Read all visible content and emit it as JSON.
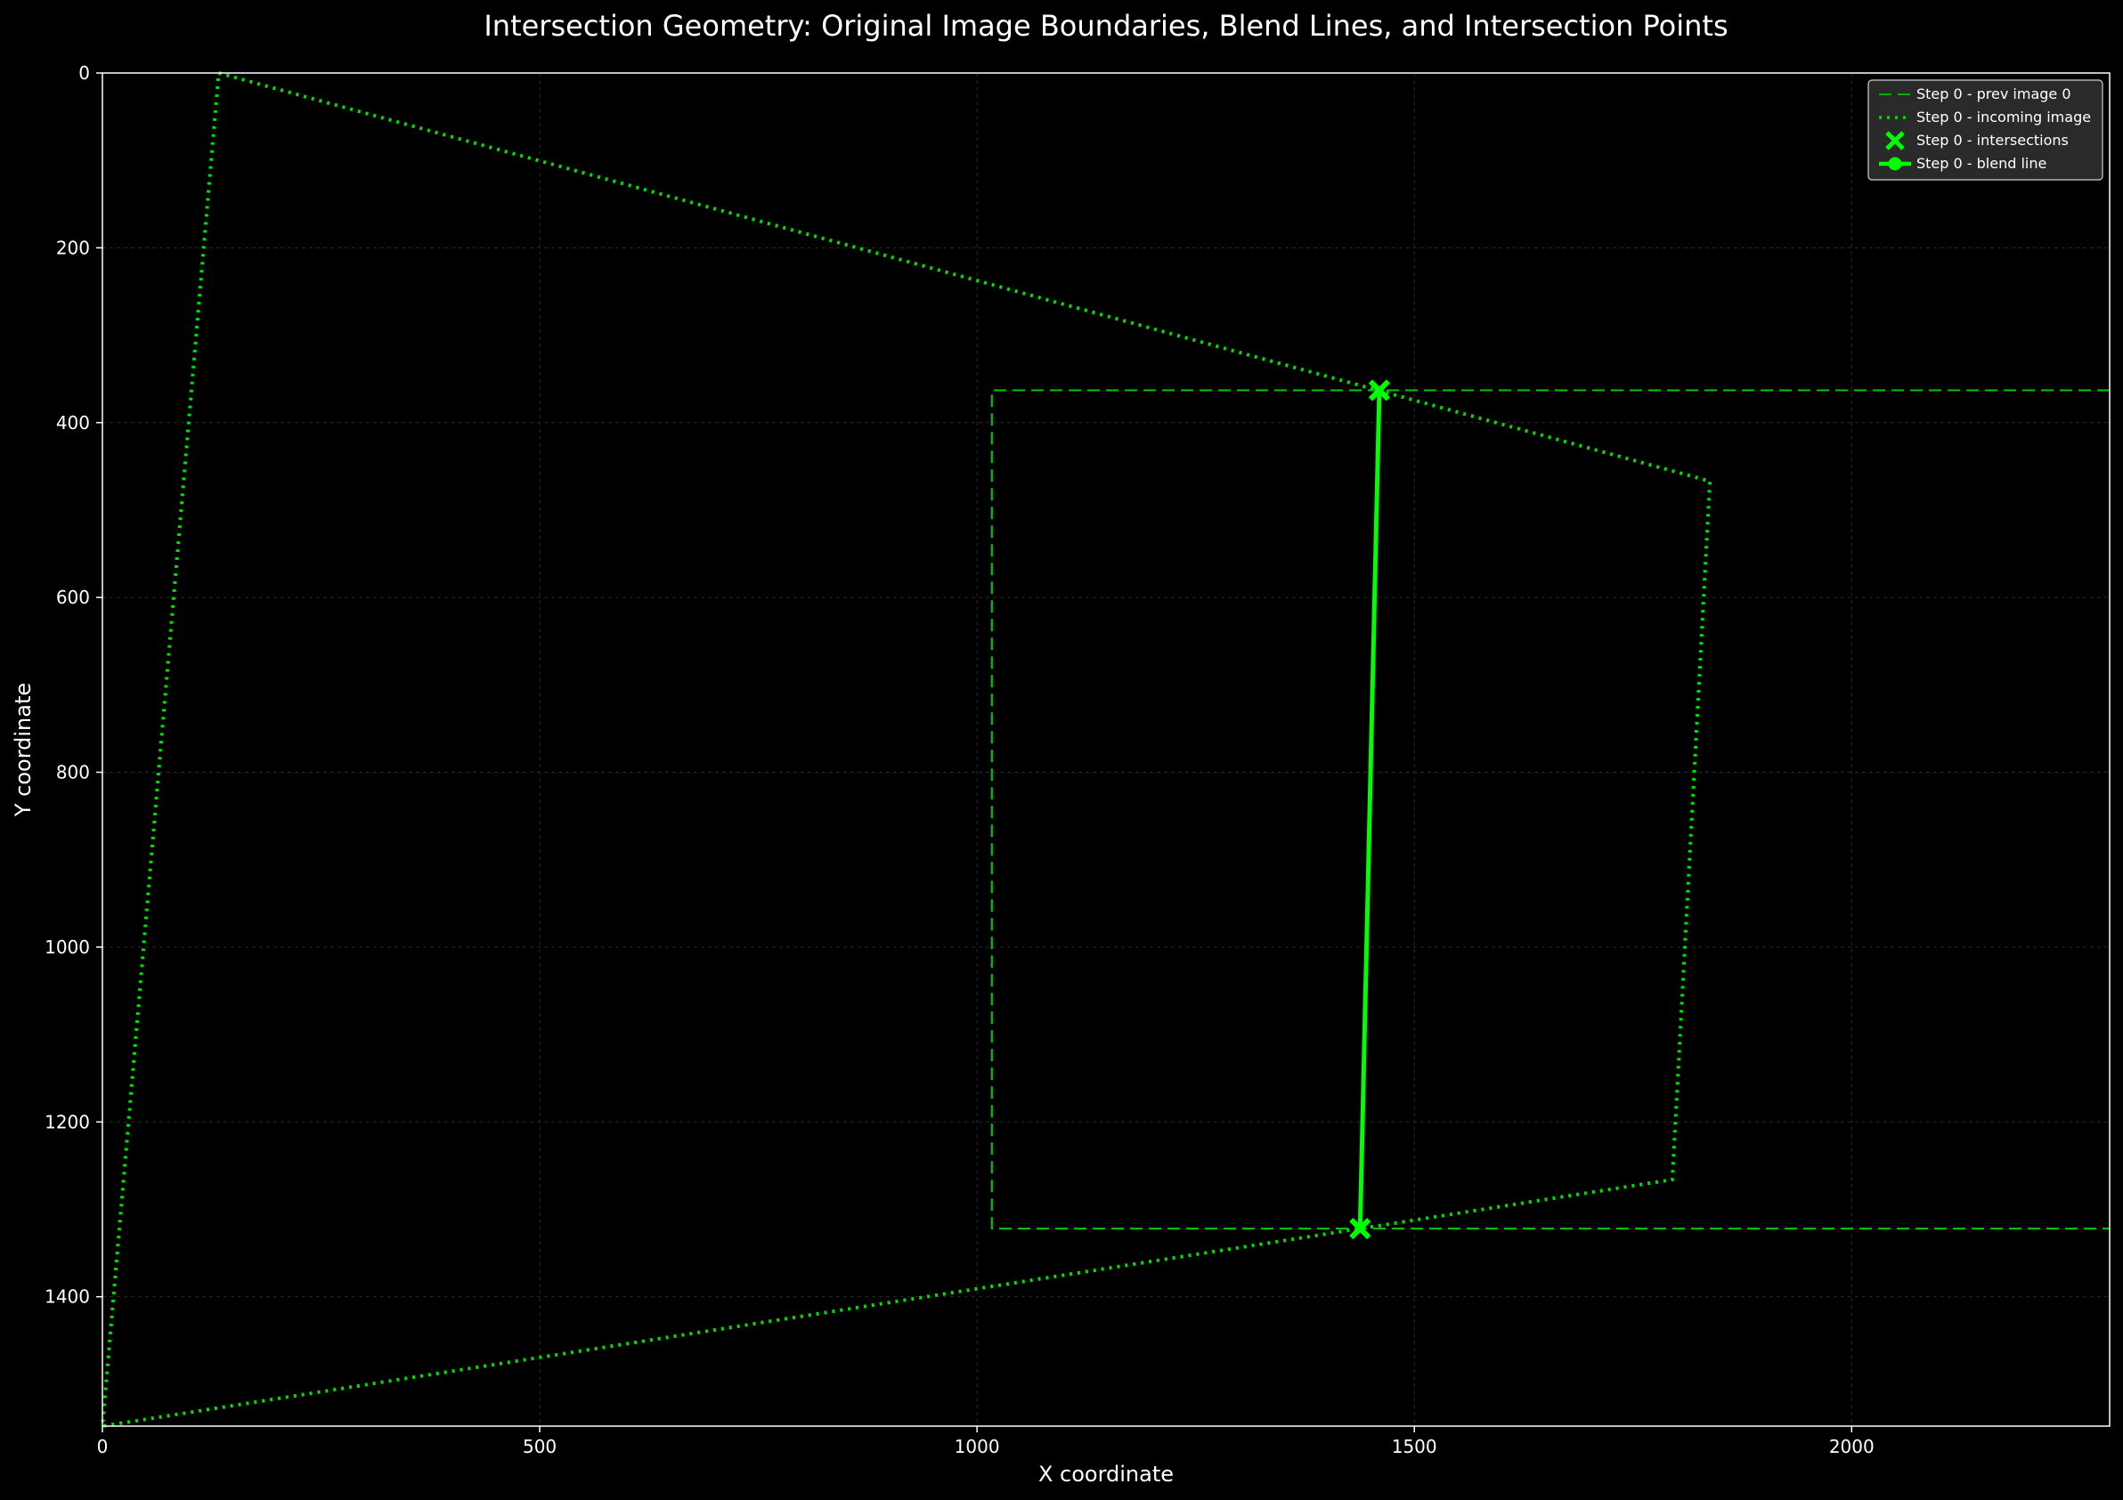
{
  "chart_data": {
    "type": "line",
    "title": "Intersection Geometry: Original Image Boundaries, Blend Lines, and Intersection Points",
    "xlabel": "X coordinate",
    "ylabel": "Y coordinate",
    "xlim": [
      0,
      2295
    ],
    "ylim": [
      1548,
      0
    ],
    "y_inverted": true,
    "grid": true,
    "legend_placement": "top-right",
    "x_ticks": [
      0,
      500,
      1000,
      1500,
      2000
    ],
    "y_ticks": [
      0,
      200,
      400,
      600,
      800,
      1000,
      1200,
      1400
    ],
    "colors": {
      "background": "#000000",
      "axes": "#ffffff",
      "grid": "#2a2a2a",
      "prev_image": "#00c000",
      "incoming_image": "#00e000",
      "blend": "#00ff00"
    },
    "series": [
      {
        "name": "Step 0 - prev image 0",
        "kind": "dashed-boundary",
        "points": [
          [
            2295,
            363
          ],
          [
            1017,
            363
          ],
          [
            1017,
            1322
          ],
          [
            2295,
            1322
          ]
        ]
      },
      {
        "name": "Step 0 - incoming image",
        "kind": "dotted-boundary",
        "points": [
          [
            133,
            0
          ],
          [
            1838,
            467
          ],
          [
            1795,
            1266
          ],
          [
            0,
            1548
          ],
          [
            0,
            1548
          ],
          [
            133,
            0
          ]
        ]
      },
      {
        "name": "Step 0 - intersections",
        "kind": "markers",
        "points": [
          [
            1460,
            363
          ],
          [
            1438,
            1322
          ]
        ]
      },
      {
        "name": "Step 0 - blend line",
        "kind": "blend-line",
        "points": [
          [
            1460,
            363
          ],
          [
            1438,
            1322
          ]
        ]
      }
    ]
  }
}
